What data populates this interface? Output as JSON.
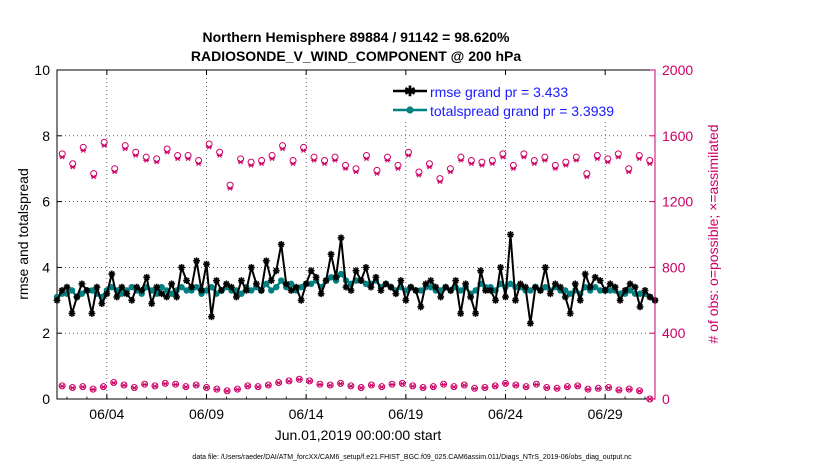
{
  "chart_data": {
    "type": "line",
    "title_line1": "Northern Hemisphere 89884 / 91142 = 98.620%",
    "title_line2": "RADIOSONDE_V_WIND_COMPONENT @ 200 hPa",
    "xlabel": "Jun.01,2019 00:00:00 start",
    "ylabel_left": "rmse and totalspread",
    "ylabel_right": "# of obs: o=possible; ×=assimilated",
    "footnote": "data file: /Users/raeder/DAI/ATM_forcXX/CAM6_setup/f.e21.FHIST_BGC.f09_025.CAM6assim.011/Diags_NTrS_2019-06/obs_diag_output.nc",
    "x_range_days": [
      0.5,
      30.5
    ],
    "x_ticks": [
      {
        "day": 3,
        "label": "06/04"
      },
      {
        "day": 8,
        "label": "06/09"
      },
      {
        "day": 13,
        "label": "06/14"
      },
      {
        "day": 18,
        "label": "06/19"
      },
      {
        "day": 23,
        "label": "06/24"
      },
      {
        "day": 28,
        "label": "06/29"
      }
    ],
    "ylim_left": [
      0,
      10
    ],
    "yticks_left": [
      "0",
      "2",
      "4",
      "6",
      "8",
      "10"
    ],
    "ylim_right": [
      0,
      2000
    ],
    "yticks_right": [
      "0",
      "400",
      "800",
      "1200",
      "1600",
      "2000"
    ],
    "legend": {
      "position": "top-right",
      "rmse_label": "rmse grand pr = 3.433",
      "spread_label": "totalspread grand pr = 3.3939"
    },
    "colors": {
      "rmse": "#000000",
      "spread": "#008080",
      "obs": "#cc0066",
      "legend_text": "#1a1aff",
      "axis": "#000000"
    },
    "timestep_days": 0.25,
    "rmse": [
      3.0,
      3.3,
      3.4,
      2.6,
      3.1,
      3.5,
      3.3,
      2.6,
      3.4,
      2.9,
      3.2,
      3.8,
      3.1,
      3.4,
      3.2,
      3.0,
      3.4,
      3.3,
      3.7,
      2.9,
      3.4,
      3.2,
      3.1,
      3.5,
      3.1,
      4.0,
      3.6,
      3.4,
      4.2,
      3.3,
      4.1,
      2.5,
      3.6,
      3.3,
      3.5,
      3.4,
      3.1,
      3.6,
      3.3,
      4.0,
      3.5,
      3.3,
      4.2,
      3.6,
      3.9,
      4.7,
      3.5,
      3.3,
      3.4,
      3.0,
      3.5,
      3.9,
      3.7,
      3.2,
      3.6,
      4.4,
      3.7,
      4.9,
      3.4,
      3.3,
      3.9,
      3.6,
      4.0,
      3.4,
      3.7,
      3.3,
      3.5,
      3.4,
      3.2,
      3.6,
      3.0,
      3.4,
      3.3,
      2.8,
      3.5,
      3.6,
      3.4,
      3.1,
      3.4,
      3.3,
      3.6,
      2.6,
      3.5,
      3.1,
      2.6,
      3.9,
      3.3,
      3.3,
      3.0,
      4.0,
      3.1,
      5.0,
      3.0,
      3.5,
      3.4,
      2.3,
      3.4,
      3.3,
      4.0,
      3.2,
      3.5,
      3.4,
      3.1,
      2.6,
      3.5,
      3.0,
      3.8,
      3.4,
      3.7,
      3.6,
      3.3,
      3.5,
      3.4,
      3.0,
      3.3,
      3.5,
      3.4,
      2.8,
      3.3,
      3.1,
      3.0
    ],
    "spread": [
      3.1,
      3.2,
      3.2,
      3.3,
      3.1,
      3.2,
      3.3,
      3.3,
      3.2,
      3.1,
      3.3,
      3.4,
      3.3,
      3.2,
      3.3,
      3.4,
      3.3,
      3.2,
      3.4,
      3.3,
      3.2,
      3.4,
      3.3,
      3.2,
      3.3,
      3.4,
      3.3,
      3.3,
      3.4,
      3.2,
      3.3,
      3.4,
      3.2,
      3.3,
      3.4,
      3.3,
      3.3,
      3.2,
      3.4,
      3.3,
      3.4,
      3.3,
      3.5,
      3.3,
      3.4,
      3.6,
      3.4,
      3.5,
      3.3,
      3.4,
      3.5,
      3.5,
      3.6,
      3.4,
      3.6,
      3.7,
      3.6,
      3.8,
      3.6,
      3.5,
      3.6,
      3.6,
      3.5,
      3.5,
      3.6,
      3.4,
      3.5,
      3.4,
      3.3,
      3.4,
      3.3,
      3.4,
      3.3,
      3.3,
      3.4,
      3.4,
      3.3,
      3.3,
      3.4,
      3.3,
      3.4,
      3.3,
      3.4,
      3.2,
      3.3,
      3.5,
      3.4,
      3.4,
      3.3,
      3.5,
      3.4,
      3.5,
      3.4,
      3.4,
      3.3,
      3.3,
      3.4,
      3.3,
      3.4,
      3.3,
      3.4,
      3.3,
      3.3,
      3.2,
      3.3,
      3.2,
      3.4,
      3.3,
      3.4,
      3.3,
      3.3,
      3.3,
      3.3,
      3.2,
      3.2,
      3.3,
      3.2,
      3.2,
      3.2,
      3.1,
      3.0
    ],
    "obs_high_possible": [
      1490,
      1430,
      1530,
      1370,
      1560,
      1400,
      1540,
      1500,
      1470,
      1460,
      1520,
      1480,
      1480,
      1450,
      1550,
      1500,
      1300,
      1460,
      1440,
      1450,
      1480,
      1540,
      1450,
      1530,
      1470,
      1450,
      1470,
      1420,
      1400,
      1480,
      1390,
      1470,
      1420,
      1500,
      1380,
      1430,
      1340,
      1400,
      1470,
      1450,
      1440,
      1450,
      1490,
      1420,
      1490,
      1450,
      1470,
      1420,
      1440,
      1470,
      1370,
      1480,
      1460,
      1490,
      1400,
      1480,
      1450
    ],
    "obs_high_assimilated": [
      1470,
      1410,
      1510,
      1350,
      1540,
      1380,
      1520,
      1480,
      1450,
      1440,
      1500,
      1460,
      1460,
      1430,
      1530,
      1480,
      1280,
      1440,
      1420,
      1430,
      1460,
      1520,
      1430,
      1510,
      1450,
      1430,
      1450,
      1400,
      1380,
      1460,
      1370,
      1450,
      1400,
      1480,
      1360,
      1410,
      1320,
      1380,
      1450,
      1430,
      1420,
      1430,
      1470,
      1400,
      1470,
      1430,
      1450,
      1400,
      1420,
      1450,
      1350,
      1460,
      1440,
      1470,
      1380,
      1460,
      1430
    ],
    "obs_low_possible": [
      80,
      70,
      75,
      60,
      75,
      100,
      85,
      70,
      90,
      80,
      95,
      90,
      75,
      85,
      70,
      60,
      50,
      60,
      80,
      75,
      85,
      100,
      110,
      120,
      110,
      90,
      85,
      95,
      80,
      70,
      85,
      75,
      90,
      95,
      80,
      70,
      75,
      90,
      75,
      85,
      65,
      70,
      80,
      95,
      85,
      75,
      90,
      70,
      65,
      75,
      80,
      60,
      65,
      70,
      55,
      60,
      50,
      0
    ],
    "obs_low_assimilated": [
      78,
      68,
      73,
      58,
      73,
      98,
      83,
      68,
      88,
      78,
      93,
      88,
      73,
      83,
      68,
      58,
      48,
      58,
      78,
      73,
      83,
      98,
      108,
      118,
      108,
      88,
      83,
      93,
      78,
      68,
      83,
      73,
      88,
      93,
      78,
      68,
      73,
      88,
      73,
      83,
      63,
      68,
      78,
      93,
      83,
      73,
      88,
      68,
      63,
      73,
      78,
      58,
      63,
      68,
      53,
      58,
      48,
      0
    ]
  }
}
